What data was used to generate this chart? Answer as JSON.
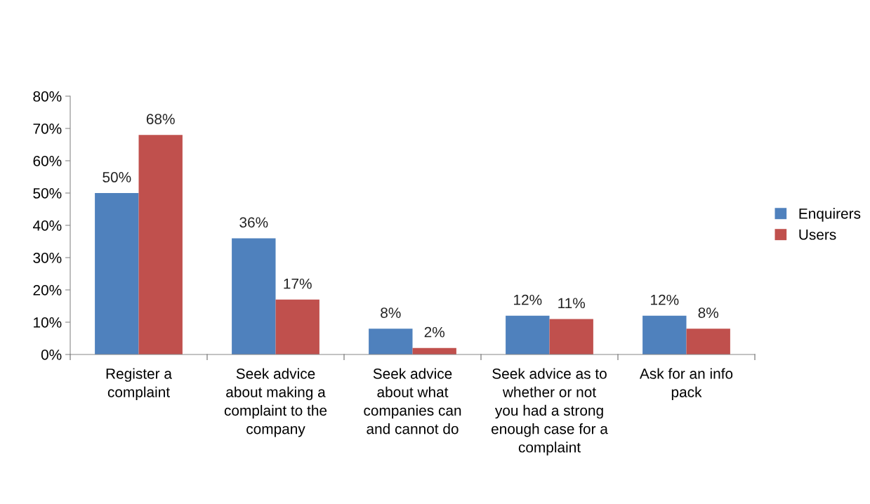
{
  "chart_data": {
    "type": "bar",
    "categories": [
      "Register a\ncomplaint",
      "Seek advice\nabout making a\ncomplaint to the\ncompany",
      "Seek advice\nabout what\ncompanies can\nand cannot do",
      "Seek advice as to\nwhether or not\nyou had a strong\nenough case for a\ncomplaint",
      "Ask for an info\npack"
    ],
    "series": [
      {
        "name": "Enquirers",
        "color": "#4f81bd",
        "values": [
          50,
          36,
          8,
          12,
          12
        ],
        "value_labels": [
          "50%",
          "36%",
          "8%",
          "12%",
          "12%"
        ]
      },
      {
        "name": "Users",
        "color": "#c0504d",
        "values": [
          68,
          17,
          2,
          11,
          8
        ],
        "value_labels": [
          "68%",
          "17%",
          "2%",
          "11%",
          "8%"
        ]
      }
    ],
    "ylim": [
      0,
      80
    ],
    "yticks": [
      {
        "value": 0,
        "label": "0%"
      },
      {
        "value": 10,
        "label": "10%"
      },
      {
        "value": 20,
        "label": "20%"
      },
      {
        "value": 30,
        "label": "30%"
      },
      {
        "value": 40,
        "label": "40%"
      },
      {
        "value": 50,
        "label": "50%"
      },
      {
        "value": 60,
        "label": "60%"
      },
      {
        "value": 70,
        "label": "70%"
      },
      {
        "value": 80,
        "label": "80%"
      }
    ],
    "grid": false,
    "legend": "right"
  }
}
